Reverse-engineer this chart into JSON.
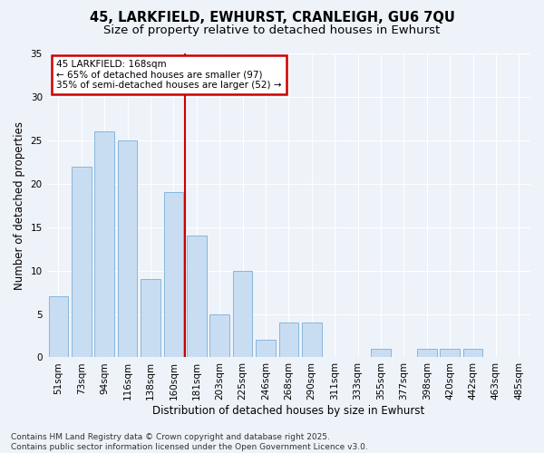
{
  "title1": "45, LARKFIELD, EWHURST, CRANLEIGH, GU6 7QU",
  "title2": "Size of property relative to detached houses in Ewhurst",
  "xlabel": "Distribution of detached houses by size in Ewhurst",
  "ylabel": "Number of detached properties",
  "categories": [
    "51sqm",
    "73sqm",
    "94sqm",
    "116sqm",
    "138sqm",
    "160sqm",
    "181sqm",
    "203sqm",
    "225sqm",
    "246sqm",
    "268sqm",
    "290sqm",
    "311sqm",
    "333sqm",
    "355sqm",
    "377sqm",
    "398sqm",
    "420sqm",
    "442sqm",
    "463sqm",
    "485sqm"
  ],
  "values": [
    7,
    22,
    26,
    25,
    9,
    19,
    14,
    5,
    10,
    2,
    4,
    4,
    0,
    0,
    1,
    0,
    1,
    1,
    1,
    0,
    0
  ],
  "bar_color": "#c9ddf2",
  "bar_edge_color": "#7aaed6",
  "background_color": "#eef2f9",
  "grid_color": "#ffffff",
  "vline_x_index": 6,
  "vline_color": "#cc0000",
  "annotation_line1": "45 LARKFIELD: 168sqm",
  "annotation_line2": "← 65% of detached houses are smaller (97)",
  "annotation_line3": "35% of semi-detached houses are larger (52) →",
  "annotation_box_color": "#cc0000",
  "ylim": [
    0,
    35
  ],
  "yticks": [
    0,
    5,
    10,
    15,
    20,
    25,
    30,
    35
  ],
  "footer": "Contains HM Land Registry data © Crown copyright and database right 2025.\nContains public sector information licensed under the Open Government Licence v3.0.",
  "title_fontsize": 10.5,
  "subtitle_fontsize": 9.5,
  "axis_label_fontsize": 8.5,
  "tick_fontsize": 7.5,
  "annotation_fontsize": 7.5,
  "footer_fontsize": 6.5
}
